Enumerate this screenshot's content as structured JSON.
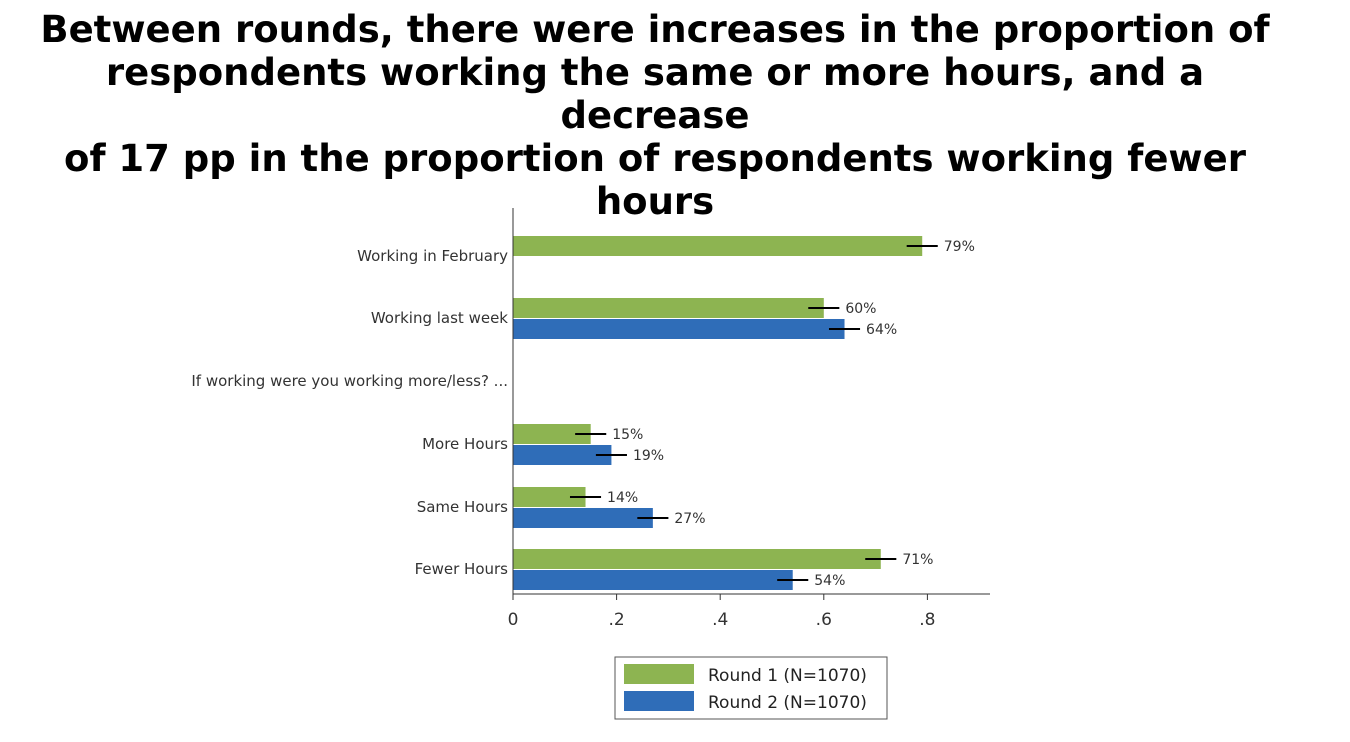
{
  "title": "Between rounds, there were increases in the proportion of\nrespondents working the same or more hours, and a decrease\nof 17 pp in the proportion of respondents working fewer\nhours",
  "colors": {
    "round1": "#8db451",
    "round2": "#2f6db8",
    "error": "#000000"
  },
  "chart_data": {
    "type": "bar",
    "orientation": "horizontal",
    "categories": [
      "Working in February",
      "Working last week",
      "If working were you working more/less? ...",
      "More Hours",
      "Same Hours",
      "Fewer Hours"
    ],
    "series": [
      {
        "name": "Round 1 (N=1070)",
        "values": [
          0.79,
          0.6,
          null,
          0.15,
          0.14,
          0.71
        ],
        "labels": [
          "79%",
          "60%",
          "",
          "15%",
          "14%",
          "71%"
        ]
      },
      {
        "name": "Round 2 (N=1070)",
        "values": [
          null,
          0.64,
          null,
          0.19,
          0.27,
          0.54
        ],
        "labels": [
          "",
          "64%",
          "",
          "19%",
          "27%",
          "54%"
        ]
      }
    ],
    "error_half_width": 0.03,
    "xticks": [
      0,
      0.2,
      0.4,
      0.6,
      0.8
    ],
    "xtick_labels": [
      "0",
      ".2",
      ".4",
      ".6",
      ".8"
    ],
    "xlim": [
      0,
      0.92
    ],
    "grid": false,
    "legend_position": "bottom"
  }
}
